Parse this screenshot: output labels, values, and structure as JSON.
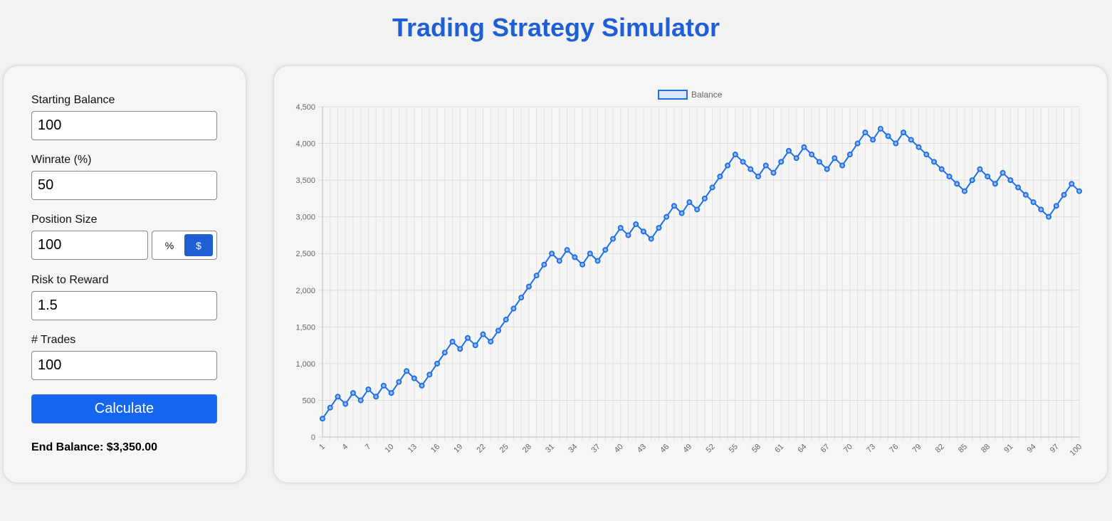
{
  "page": {
    "title": "Trading Strategy Simulator"
  },
  "form": {
    "starting_balance": {
      "label": "Starting Balance",
      "value": "100"
    },
    "winrate": {
      "label": "Winrate (%)",
      "value": "50"
    },
    "position_size": {
      "label": "Position Size",
      "value": "100",
      "mode_percent": "%",
      "mode_dollar": "$",
      "selected_mode": "$"
    },
    "risk_reward": {
      "label": "Risk to Reward",
      "value": "1.5"
    },
    "trades": {
      "label": "# Trades",
      "value": "100"
    },
    "calculate_label": "Calculate",
    "result_text": "End Balance: $3,350.00"
  },
  "colors": {
    "accent": "#1e5fd6",
    "line": "#1f6fe8",
    "button": "#1565f0"
  },
  "chart_data": {
    "type": "line",
    "legend": [
      "Balance"
    ],
    "legend_position": "top",
    "grid": true,
    "ylim": [
      0,
      4500
    ],
    "yticks": [
      0,
      500,
      1000,
      1500,
      2000,
      2500,
      3000,
      3500,
      4000,
      4500
    ],
    "ytick_labels": [
      "0",
      "500",
      "1,000",
      "1,500",
      "2,000",
      "2,500",
      "3,000",
      "3,500",
      "4,000",
      "4,500"
    ],
    "xtick_labels": [
      "1",
      "4",
      "7",
      "10",
      "13",
      "16",
      "19",
      "22",
      "25",
      "28",
      "31",
      "34",
      "37",
      "40",
      "43",
      "46",
      "49",
      "52",
      "55",
      "58",
      "61",
      "64",
      "67",
      "70",
      "73",
      "76",
      "79",
      "82",
      "85",
      "88",
      "91",
      "94",
      "97",
      "100"
    ],
    "x": [
      1,
      2,
      3,
      4,
      5,
      6,
      7,
      8,
      9,
      10,
      11,
      12,
      13,
      14,
      15,
      16,
      17,
      18,
      19,
      20,
      21,
      22,
      23,
      24,
      25,
      26,
      27,
      28,
      29,
      30,
      31,
      32,
      33,
      34,
      35,
      36,
      37,
      38,
      39,
      40,
      41,
      42,
      43,
      44,
      45,
      46,
      47,
      48,
      49,
      50,
      51,
      52,
      53,
      54,
      55,
      56,
      57,
      58,
      59,
      60,
      61,
      62,
      63,
      64,
      65,
      66,
      67,
      68,
      69,
      70,
      71,
      72,
      73,
      74,
      75,
      76,
      77,
      78,
      79,
      80,
      81,
      82,
      83,
      84,
      85,
      86,
      87,
      88,
      89,
      90,
      91,
      92,
      93,
      94,
      95,
      96,
      97,
      98,
      99,
      100
    ],
    "series": [
      {
        "name": "Balance",
        "values": [
          250,
          400,
          550,
          450,
          600,
          500,
          650,
          550,
          700,
          600,
          750,
          900,
          800,
          700,
          850,
          1000,
          1150,
          1300,
          1200,
          1350,
          1250,
          1400,
          1300,
          1450,
          1600,
          1750,
          1900,
          2050,
          2200,
          2350,
          2500,
          2400,
          2550,
          2450,
          2350,
          2500,
          2400,
          2550,
          2700,
          2850,
          2750,
          2900,
          2800,
          2700,
          2850,
          3000,
          3150,
          3050,
          3200,
          3100,
          3250,
          3400,
          3550,
          3700,
          3850,
          3750,
          3650,
          3550,
          3700,
          3600,
          3750,
          3900,
          3800,
          3950,
          3850,
          3750,
          3650,
          3800,
          3700,
          3850,
          4000,
          4150,
          4050,
          4200,
          4100,
          4000,
          4150,
          4050,
          3950,
          3850,
          3750,
          3650,
          3550,
          3450,
          3350,
          3500,
          3650,
          3550,
          3450,
          3600,
          3500,
          3400,
          3300,
          3200,
          3100,
          3000,
          3150,
          3300,
          3450,
          3350
        ]
      }
    ]
  }
}
